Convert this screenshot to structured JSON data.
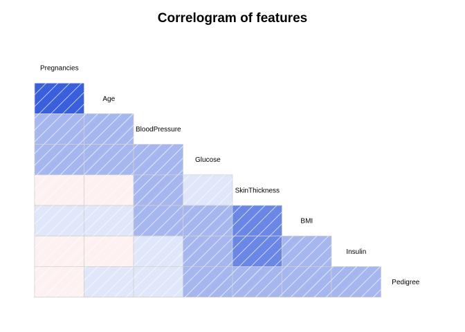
{
  "chart_data": {
    "type": "heatmap",
    "title": "Correlogram of features",
    "variables": [
      "Pregnancies",
      "Age",
      "BloodPressure",
      "Glucose",
      "SkinThickness",
      "BMI",
      "Insulin",
      "Pedigree"
    ],
    "lower_triangle_correlations": [
      [],
      [
        0.54
      ],
      [
        0.14,
        0.24
      ],
      [
        0.13,
        0.26,
        0.15
      ],
      [
        -0.08,
        -0.11,
        0.21,
        0.06
      ],
      [
        0.02,
        0.04,
        0.28,
        0.22,
        0.39
      ],
      [
        -0.07,
        -0.04,
        0.09,
        0.33,
        0.44,
        0.2
      ],
      [
        -0.03,
        0.03,
        0.04,
        0.14,
        0.18,
        0.14,
        0.19
      ]
    ],
    "colors": {
      "positive": "#3a5fdc",
      "negative": "#f4a0a0",
      "cell_border": "#d0d0d0"
    },
    "shading": "diagonal hatch, intensity by strength of correlation",
    "panel": "lower triangle",
    "diagonal_labels": true,
    "grid": false,
    "legend": "none"
  }
}
